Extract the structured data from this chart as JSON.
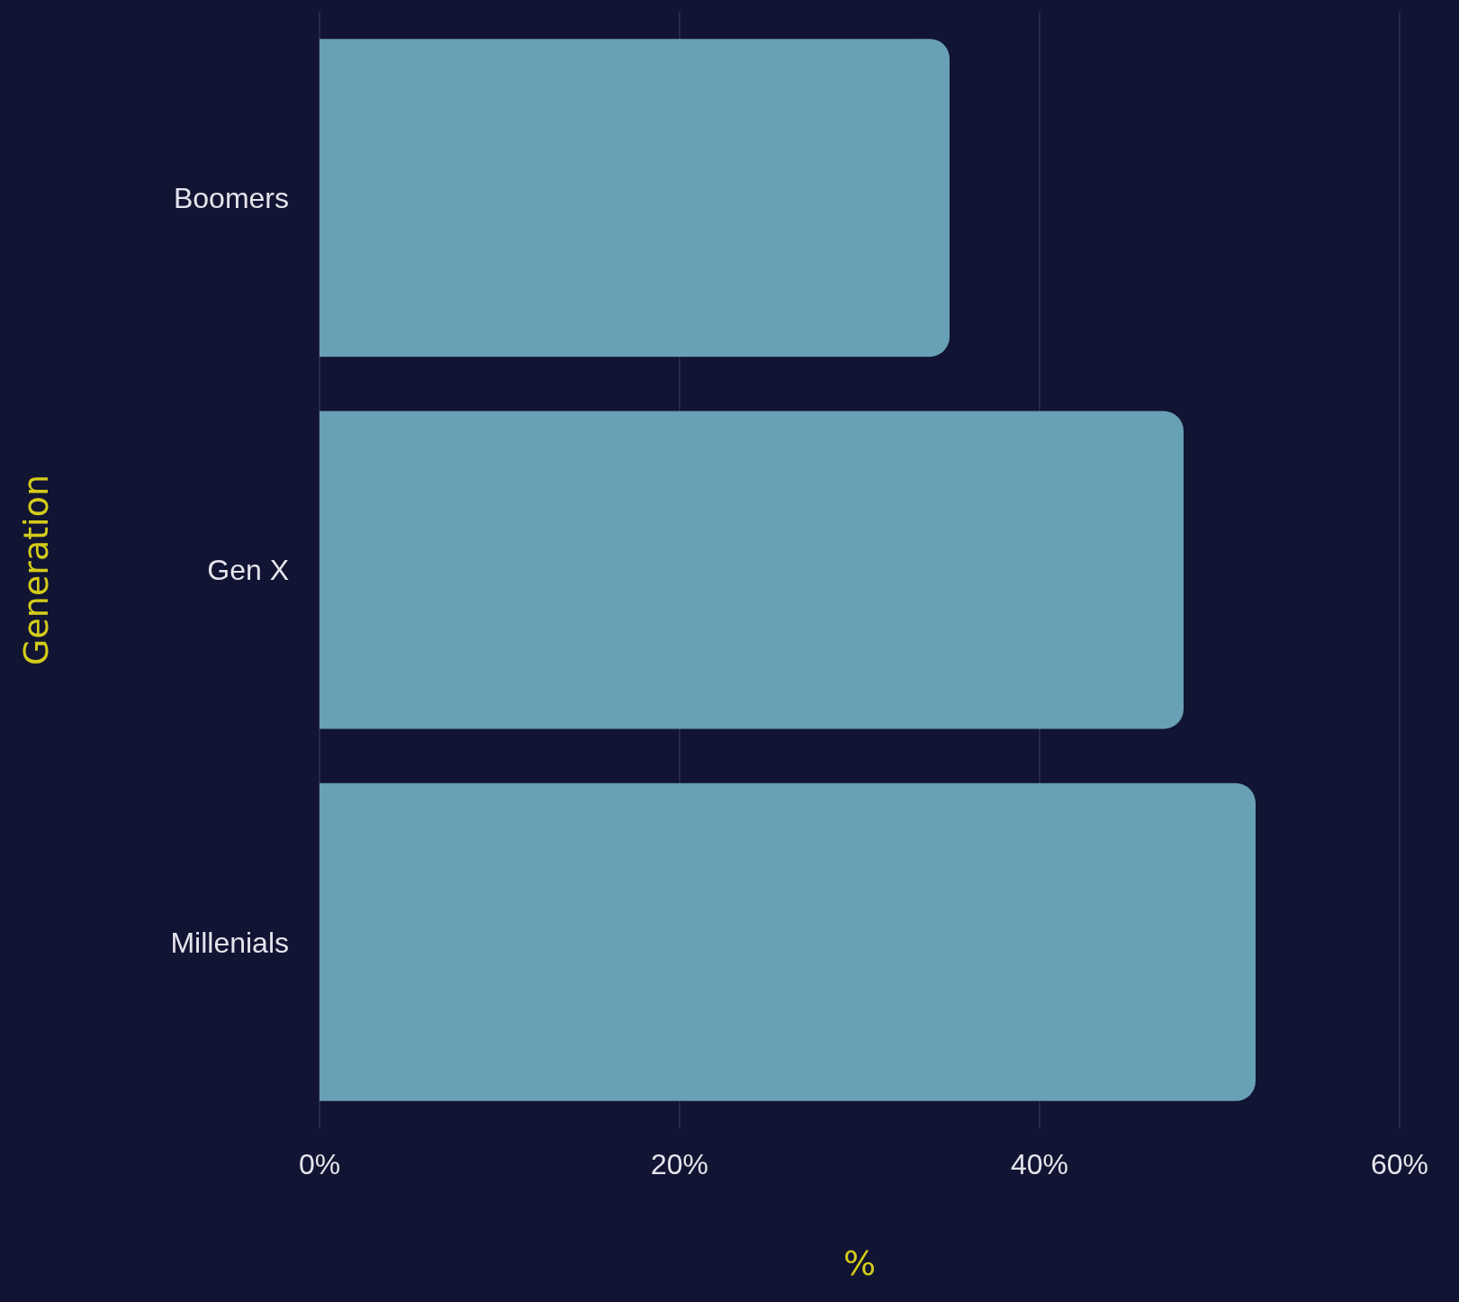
{
  "chart_data": {
    "type": "bar",
    "orientation": "horizontal",
    "xlabel": "%",
    "ylabel": "Generation",
    "categories": [
      "Boomers",
      "Gen X",
      "Millenials"
    ],
    "values": [
      35,
      48,
      52
    ],
    "color": "#68a0b5",
    "xlim": [
      0,
      60
    ],
    "xticks": [
      {
        "value": 0,
        "label": "0%"
      },
      {
        "value": 20,
        "label": "20%"
      },
      {
        "value": 40,
        "label": "40%"
      },
      {
        "value": 60,
        "label": "60%"
      }
    ],
    "grid": "x"
  }
}
